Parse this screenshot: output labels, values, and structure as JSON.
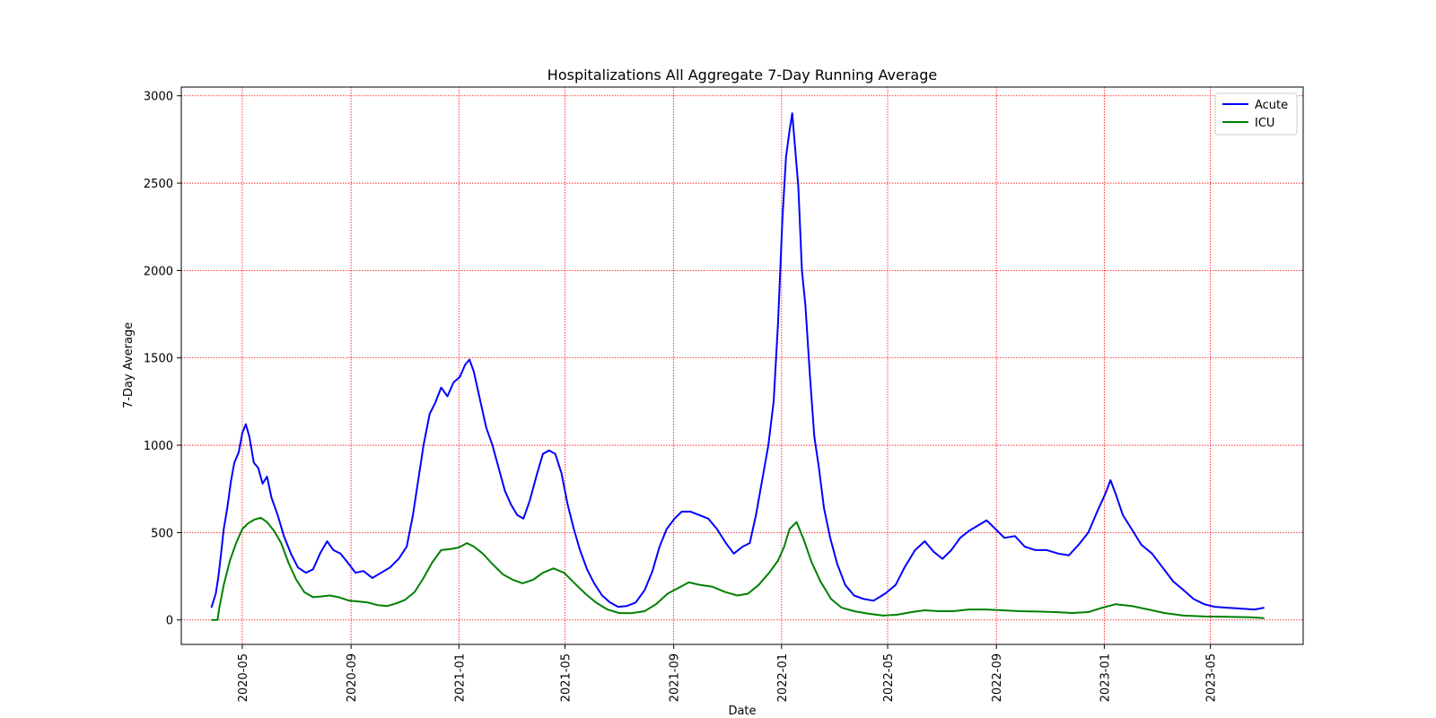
{
  "chart_data": {
    "type": "line",
    "title": "Hospitalizations All Aggregate 7-Day Running Average",
    "xlabel": "Date",
    "ylabel": "7-Day Average",
    "xlim": [
      "2020-02-22",
      "2023-08-14"
    ],
    "ylim": [
      -140,
      3050
    ],
    "grid": true,
    "grid_color": "#ff0000",
    "legend_position": "top-right",
    "xticks": [
      "2020-05",
      "2020-09",
      "2021-01",
      "2021-05",
      "2021-09",
      "2022-01",
      "2022-05",
      "2022-09",
      "2023-01",
      "2023-05"
    ],
    "yticks": [
      0,
      500,
      1000,
      1500,
      2000,
      2500,
      3000
    ],
    "series": [
      {
        "name": "Acute",
        "color": "#0000ff",
        "points": [
          [
            "2020-03-27",
            70
          ],
          [
            "2020-04-01",
            150
          ],
          [
            "2020-04-04",
            250
          ],
          [
            "2020-04-07",
            380
          ],
          [
            "2020-04-10",
            520
          ],
          [
            "2020-04-14",
            640
          ],
          [
            "2020-04-18",
            790
          ],
          [
            "2020-04-22",
            900
          ],
          [
            "2020-04-27",
            960
          ],
          [
            "2020-05-01",
            1070
          ],
          [
            "2020-05-05",
            1120
          ],
          [
            "2020-05-09",
            1050
          ],
          [
            "2020-05-14",
            900
          ],
          [
            "2020-05-19",
            870
          ],
          [
            "2020-05-24",
            780
          ],
          [
            "2020-05-29",
            820
          ],
          [
            "2020-06-03",
            700
          ],
          [
            "2020-06-10",
            600
          ],
          [
            "2020-06-17",
            480
          ],
          [
            "2020-06-25",
            380
          ],
          [
            "2020-07-03",
            300
          ],
          [
            "2020-07-12",
            270
          ],
          [
            "2020-07-20",
            290
          ],
          [
            "2020-07-28",
            380
          ],
          [
            "2020-08-05",
            450
          ],
          [
            "2020-08-12",
            400
          ],
          [
            "2020-08-20",
            380
          ],
          [
            "2020-08-28",
            330
          ],
          [
            "2020-09-06",
            270
          ],
          [
            "2020-09-15",
            280
          ],
          [
            "2020-09-25",
            240
          ],
          [
            "2020-10-05",
            270
          ],
          [
            "2020-10-15",
            300
          ],
          [
            "2020-10-25",
            350
          ],
          [
            "2020-11-03",
            420
          ],
          [
            "2020-11-10",
            600
          ],
          [
            "2020-11-16",
            800
          ],
          [
            "2020-11-22",
            1000
          ],
          [
            "2020-11-29",
            1180
          ],
          [
            "2020-12-05",
            1240
          ],
          [
            "2020-12-12",
            1330
          ],
          [
            "2020-12-19",
            1280
          ],
          [
            "2020-12-26",
            1360
          ],
          [
            "2021-01-02",
            1390
          ],
          [
            "2021-01-08",
            1460
          ],
          [
            "2021-01-13",
            1490
          ],
          [
            "2021-01-18",
            1420
          ],
          [
            "2021-01-24",
            1280
          ],
          [
            "2021-02-01",
            1100
          ],
          [
            "2021-02-08",
            1000
          ],
          [
            "2021-02-15",
            870
          ],
          [
            "2021-02-22",
            740
          ],
          [
            "2021-03-01",
            660
          ],
          [
            "2021-03-08",
            600
          ],
          [
            "2021-03-15",
            580
          ],
          [
            "2021-03-22",
            680
          ],
          [
            "2021-03-30",
            830
          ],
          [
            "2021-04-06",
            950
          ],
          [
            "2021-04-13",
            970
          ],
          [
            "2021-04-20",
            950
          ],
          [
            "2021-04-27",
            840
          ],
          [
            "2021-05-04",
            660
          ],
          [
            "2021-05-11",
            520
          ],
          [
            "2021-05-18",
            400
          ],
          [
            "2021-05-26",
            290
          ],
          [
            "2021-06-03",
            210
          ],
          [
            "2021-06-12",
            140
          ],
          [
            "2021-06-21",
            100
          ],
          [
            "2021-06-30",
            75
          ],
          [
            "2021-07-10",
            80
          ],
          [
            "2021-07-20",
            100
          ],
          [
            "2021-07-30",
            170
          ],
          [
            "2021-08-08",
            280
          ],
          [
            "2021-08-16",
            420
          ],
          [
            "2021-08-24",
            520
          ],
          [
            "2021-09-02",
            580
          ],
          [
            "2021-09-10",
            620
          ],
          [
            "2021-09-20",
            620
          ],
          [
            "2021-09-30",
            600
          ],
          [
            "2021-10-10",
            580
          ],
          [
            "2021-10-20",
            520
          ],
          [
            "2021-10-30",
            440
          ],
          [
            "2021-11-08",
            380
          ],
          [
            "2021-11-18",
            420
          ],
          [
            "2021-11-26",
            440
          ],
          [
            "2021-12-03",
            600
          ],
          [
            "2021-12-10",
            800
          ],
          [
            "2021-12-17",
            1000
          ],
          [
            "2021-12-23",
            1250
          ],
          [
            "2021-12-28",
            1700
          ],
          [
            "2022-01-02",
            2300
          ],
          [
            "2022-01-06",
            2650
          ],
          [
            "2022-01-10",
            2800
          ],
          [
            "2022-01-13",
            2900
          ],
          [
            "2022-01-16",
            2720
          ],
          [
            "2022-01-20",
            2480
          ],
          [
            "2022-01-24",
            2000
          ],
          [
            "2022-01-28",
            1800
          ],
          [
            "2022-02-02",
            1400
          ],
          [
            "2022-02-07",
            1050
          ],
          [
            "2022-02-12",
            880
          ],
          [
            "2022-02-18",
            640
          ],
          [
            "2022-02-25",
            470
          ],
          [
            "2022-03-05",
            320
          ],
          [
            "2022-03-14",
            200
          ],
          [
            "2022-03-24",
            140
          ],
          [
            "2022-04-04",
            120
          ],
          [
            "2022-04-15",
            110
          ],
          [
            "2022-04-28",
            150
          ],
          [
            "2022-05-10",
            200
          ],
          [
            "2022-05-20",
            300
          ],
          [
            "2022-06-01",
            400
          ],
          [
            "2022-06-12",
            450
          ],
          [
            "2022-06-22",
            390
          ],
          [
            "2022-07-02",
            350
          ],
          [
            "2022-07-12",
            400
          ],
          [
            "2022-07-22",
            470
          ],
          [
            "2022-08-01",
            510
          ],
          [
            "2022-08-11",
            540
          ],
          [
            "2022-08-21",
            570
          ],
          [
            "2022-08-31",
            520
          ],
          [
            "2022-09-10",
            470
          ],
          [
            "2022-09-22",
            480
          ],
          [
            "2022-10-03",
            420
          ],
          [
            "2022-10-15",
            400
          ],
          [
            "2022-10-28",
            400
          ],
          [
            "2022-11-10",
            380
          ],
          [
            "2022-11-22",
            370
          ],
          [
            "2022-12-03",
            430
          ],
          [
            "2022-12-14",
            500
          ],
          [
            "2022-12-24",
            620
          ],
          [
            "2023-01-02",
            720
          ],
          [
            "2023-01-08",
            800
          ],
          [
            "2023-01-14",
            720
          ],
          [
            "2023-01-22",
            600
          ],
          [
            "2023-02-01",
            520
          ],
          [
            "2023-02-12",
            430
          ],
          [
            "2023-02-24",
            380
          ],
          [
            "2023-03-08",
            300
          ],
          [
            "2023-03-20",
            220
          ],
          [
            "2023-04-01",
            170
          ],
          [
            "2023-04-12",
            120
          ],
          [
            "2023-04-24",
            90
          ],
          [
            "2023-05-06",
            75
          ],
          [
            "2023-05-20",
            70
          ],
          [
            "2023-06-05",
            65
          ],
          [
            "2023-06-20",
            60
          ],
          [
            "2023-07-01",
            70
          ]
        ]
      },
      {
        "name": "ICU",
        "color": "#008000",
        "points": [
          [
            "2020-03-27",
            0
          ],
          [
            "2020-04-03",
            0
          ],
          [
            "2020-04-05",
            70
          ],
          [
            "2020-04-10",
            200
          ],
          [
            "2020-04-17",
            340
          ],
          [
            "2020-04-24",
            440
          ],
          [
            "2020-05-01",
            520
          ],
          [
            "2020-05-08",
            555
          ],
          [
            "2020-05-15",
            575
          ],
          [
            "2020-05-22",
            585
          ],
          [
            "2020-05-29",
            560
          ],
          [
            "2020-06-06",
            510
          ],
          [
            "2020-06-14",
            440
          ],
          [
            "2020-06-22",
            330
          ],
          [
            "2020-07-01",
            230
          ],
          [
            "2020-07-10",
            160
          ],
          [
            "2020-07-20",
            130
          ],
          [
            "2020-07-30",
            135
          ],
          [
            "2020-08-08",
            140
          ],
          [
            "2020-08-18",
            130
          ],
          [
            "2020-08-30",
            110
          ],
          [
            "2020-09-10",
            105
          ],
          [
            "2020-09-20",
            100
          ],
          [
            "2020-10-01",
            85
          ],
          [
            "2020-10-12",
            80
          ],
          [
            "2020-10-22",
            95
          ],
          [
            "2020-11-01",
            115
          ],
          [
            "2020-11-12",
            160
          ],
          [
            "2020-11-22",
            240
          ],
          [
            "2020-12-02",
            330
          ],
          [
            "2020-12-12",
            400
          ],
          [
            "2020-12-22",
            405
          ],
          [
            "2021-01-01",
            415
          ],
          [
            "2021-01-10",
            440
          ],
          [
            "2021-01-18",
            420
          ],
          [
            "2021-01-28",
            380
          ],
          [
            "2021-02-08",
            320
          ],
          [
            "2021-02-20",
            260
          ],
          [
            "2021-03-03",
            230
          ],
          [
            "2021-03-14",
            210
          ],
          [
            "2021-03-26",
            230
          ],
          [
            "2021-04-06",
            270
          ],
          [
            "2021-04-18",
            295
          ],
          [
            "2021-04-30",
            270
          ],
          [
            "2021-05-12",
            210
          ],
          [
            "2021-05-24",
            150
          ],
          [
            "2021-06-05",
            100
          ],
          [
            "2021-06-18",
            60
          ],
          [
            "2021-07-01",
            40
          ],
          [
            "2021-07-15",
            38
          ],
          [
            "2021-07-30",
            50
          ],
          [
            "2021-08-12",
            90
          ],
          [
            "2021-08-25",
            150
          ],
          [
            "2021-09-05",
            180
          ],
          [
            "2021-09-18",
            215
          ],
          [
            "2021-10-01",
            200
          ],
          [
            "2021-10-15",
            190
          ],
          [
            "2021-10-29",
            160
          ],
          [
            "2021-11-12",
            140
          ],
          [
            "2021-11-24",
            150
          ],
          [
            "2021-12-06",
            200
          ],
          [
            "2021-12-18",
            270
          ],
          [
            "2021-12-28",
            340
          ],
          [
            "2022-01-04",
            420
          ],
          [
            "2022-01-10",
            520
          ],
          [
            "2022-01-18",
            560
          ],
          [
            "2022-01-26",
            460
          ],
          [
            "2022-02-04",
            330
          ],
          [
            "2022-02-14",
            220
          ],
          [
            "2022-02-26",
            120
          ],
          [
            "2022-03-10",
            70
          ],
          [
            "2022-03-24",
            50
          ],
          [
            "2022-04-10",
            35
          ],
          [
            "2022-04-26",
            25
          ],
          [
            "2022-05-12",
            30
          ],
          [
            "2022-05-28",
            45
          ],
          [
            "2022-06-12",
            55
          ],
          [
            "2022-06-28",
            50
          ],
          [
            "2022-07-14",
            50
          ],
          [
            "2022-08-01",
            60
          ],
          [
            "2022-08-20",
            60
          ],
          [
            "2022-09-08",
            55
          ],
          [
            "2022-09-28",
            50
          ],
          [
            "2022-10-18",
            48
          ],
          [
            "2022-11-06",
            45
          ],
          [
            "2022-11-26",
            40
          ],
          [
            "2022-12-14",
            45
          ],
          [
            "2022-12-30",
            70
          ],
          [
            "2023-01-14",
            90
          ],
          [
            "2023-02-01",
            80
          ],
          [
            "2023-02-20",
            60
          ],
          [
            "2023-03-10",
            40
          ],
          [
            "2023-04-01",
            25
          ],
          [
            "2023-04-25",
            20
          ],
          [
            "2023-05-20",
            18
          ],
          [
            "2023-06-15",
            15
          ],
          [
            "2023-07-01",
            10
          ]
        ]
      }
    ]
  }
}
